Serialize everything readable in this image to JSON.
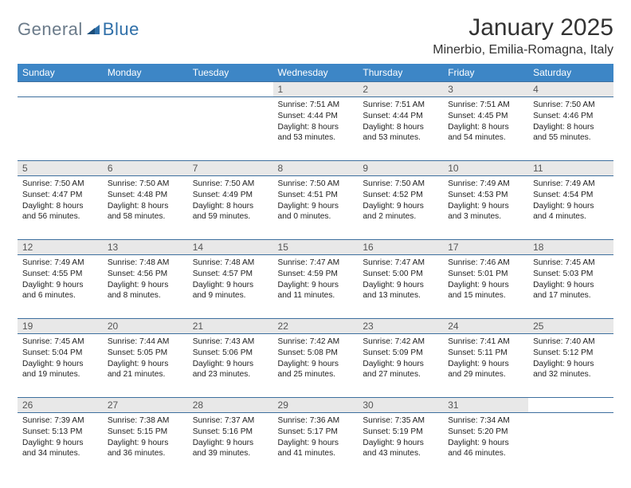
{
  "logo": {
    "part1": "General",
    "part2": "Blue"
  },
  "title": "January 2025",
  "location": "Minerbio, Emilia-Romagna, Italy",
  "colors": {
    "header_bg": "#3d86c6",
    "header_text": "#ffffff",
    "daynum_bg": "#e8e8e8",
    "border": "#3d6f9e",
    "logo_gray": "#6b7b8a",
    "logo_blue": "#2f6fa8"
  },
  "day_headers": [
    "Sunday",
    "Monday",
    "Tuesday",
    "Wednesday",
    "Thursday",
    "Friday",
    "Saturday"
  ],
  "weeks": [
    [
      null,
      null,
      null,
      {
        "n": "1",
        "sunrise": "7:51 AM",
        "sunset": "4:44 PM",
        "day_h": "8",
        "day_m": "53"
      },
      {
        "n": "2",
        "sunrise": "7:51 AM",
        "sunset": "4:44 PM",
        "day_h": "8",
        "day_m": "53"
      },
      {
        "n": "3",
        "sunrise": "7:51 AM",
        "sunset": "4:45 PM",
        "day_h": "8",
        "day_m": "54"
      },
      {
        "n": "4",
        "sunrise": "7:50 AM",
        "sunset": "4:46 PM",
        "day_h": "8",
        "day_m": "55"
      }
    ],
    [
      {
        "n": "5",
        "sunrise": "7:50 AM",
        "sunset": "4:47 PM",
        "day_h": "8",
        "day_m": "56"
      },
      {
        "n": "6",
        "sunrise": "7:50 AM",
        "sunset": "4:48 PM",
        "day_h": "8",
        "day_m": "58"
      },
      {
        "n": "7",
        "sunrise": "7:50 AM",
        "sunset": "4:49 PM",
        "day_h": "8",
        "day_m": "59"
      },
      {
        "n": "8",
        "sunrise": "7:50 AM",
        "sunset": "4:51 PM",
        "day_h": "9",
        "day_m": "0"
      },
      {
        "n": "9",
        "sunrise": "7:50 AM",
        "sunset": "4:52 PM",
        "day_h": "9",
        "day_m": "2"
      },
      {
        "n": "10",
        "sunrise": "7:49 AM",
        "sunset": "4:53 PM",
        "day_h": "9",
        "day_m": "3"
      },
      {
        "n": "11",
        "sunrise": "7:49 AM",
        "sunset": "4:54 PM",
        "day_h": "9",
        "day_m": "4"
      }
    ],
    [
      {
        "n": "12",
        "sunrise": "7:49 AM",
        "sunset": "4:55 PM",
        "day_h": "9",
        "day_m": "6"
      },
      {
        "n": "13",
        "sunrise": "7:48 AM",
        "sunset": "4:56 PM",
        "day_h": "9",
        "day_m": "8"
      },
      {
        "n": "14",
        "sunrise": "7:48 AM",
        "sunset": "4:57 PM",
        "day_h": "9",
        "day_m": "9"
      },
      {
        "n": "15",
        "sunrise": "7:47 AM",
        "sunset": "4:59 PM",
        "day_h": "9",
        "day_m": "11"
      },
      {
        "n": "16",
        "sunrise": "7:47 AM",
        "sunset": "5:00 PM",
        "day_h": "9",
        "day_m": "13"
      },
      {
        "n": "17",
        "sunrise": "7:46 AM",
        "sunset": "5:01 PM",
        "day_h": "9",
        "day_m": "15"
      },
      {
        "n": "18",
        "sunrise": "7:45 AM",
        "sunset": "5:03 PM",
        "day_h": "9",
        "day_m": "17"
      }
    ],
    [
      {
        "n": "19",
        "sunrise": "7:45 AM",
        "sunset": "5:04 PM",
        "day_h": "9",
        "day_m": "19"
      },
      {
        "n": "20",
        "sunrise": "7:44 AM",
        "sunset": "5:05 PM",
        "day_h": "9",
        "day_m": "21"
      },
      {
        "n": "21",
        "sunrise": "7:43 AM",
        "sunset": "5:06 PM",
        "day_h": "9",
        "day_m": "23"
      },
      {
        "n": "22",
        "sunrise": "7:42 AM",
        "sunset": "5:08 PM",
        "day_h": "9",
        "day_m": "25"
      },
      {
        "n": "23",
        "sunrise": "7:42 AM",
        "sunset": "5:09 PM",
        "day_h": "9",
        "day_m": "27"
      },
      {
        "n": "24",
        "sunrise": "7:41 AM",
        "sunset": "5:11 PM",
        "day_h": "9",
        "day_m": "29"
      },
      {
        "n": "25",
        "sunrise": "7:40 AM",
        "sunset": "5:12 PM",
        "day_h": "9",
        "day_m": "32"
      }
    ],
    [
      {
        "n": "26",
        "sunrise": "7:39 AM",
        "sunset": "5:13 PM",
        "day_h": "9",
        "day_m": "34"
      },
      {
        "n": "27",
        "sunrise": "7:38 AM",
        "sunset": "5:15 PM",
        "day_h": "9",
        "day_m": "36"
      },
      {
        "n": "28",
        "sunrise": "7:37 AM",
        "sunset": "5:16 PM",
        "day_h": "9",
        "day_m": "39"
      },
      {
        "n": "29",
        "sunrise": "7:36 AM",
        "sunset": "5:17 PM",
        "day_h": "9",
        "day_m": "41"
      },
      {
        "n": "30",
        "sunrise": "7:35 AM",
        "sunset": "5:19 PM",
        "day_h": "9",
        "day_m": "43"
      },
      {
        "n": "31",
        "sunrise": "7:34 AM",
        "sunset": "5:20 PM",
        "day_h": "9",
        "day_m": "46"
      },
      null
    ]
  ],
  "labels": {
    "sunrise": "Sunrise:",
    "sunset": "Sunset:",
    "daylight": "Daylight:",
    "hours": "hours",
    "and": "and",
    "minutes": "minutes."
  }
}
